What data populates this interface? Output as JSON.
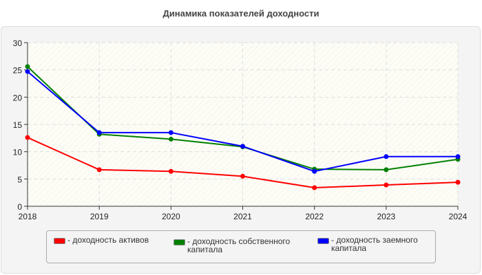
{
  "chart_data": {
    "type": "line",
    "title": "Динамика показателей доходности",
    "x": [
      "2018",
      "2019",
      "2020",
      "2021",
      "2022",
      "2023",
      "2024"
    ],
    "ylim": [
      0,
      30
    ],
    "yticks": [
      0,
      5,
      10,
      15,
      20,
      25,
      30
    ],
    "grid": true,
    "legend_placement": "bottom",
    "series": [
      {
        "name": "- доходность активов",
        "color": "#ff0000",
        "values": [
          12.6,
          6.7,
          6.4,
          5.5,
          3.4,
          3.9,
          4.4
        ]
      },
      {
        "name": "- доходность собственного капитала",
        "color": "#008000",
        "values": [
          25.6,
          13.2,
          12.3,
          10.9,
          6.8,
          6.7,
          8.6
        ]
      },
      {
        "name": "- доходность заемного капитала",
        "color": "#0000ff",
        "values": [
          24.7,
          13.5,
          13.5,
          11.0,
          6.4,
          9.1,
          9.1
        ]
      }
    ]
  }
}
